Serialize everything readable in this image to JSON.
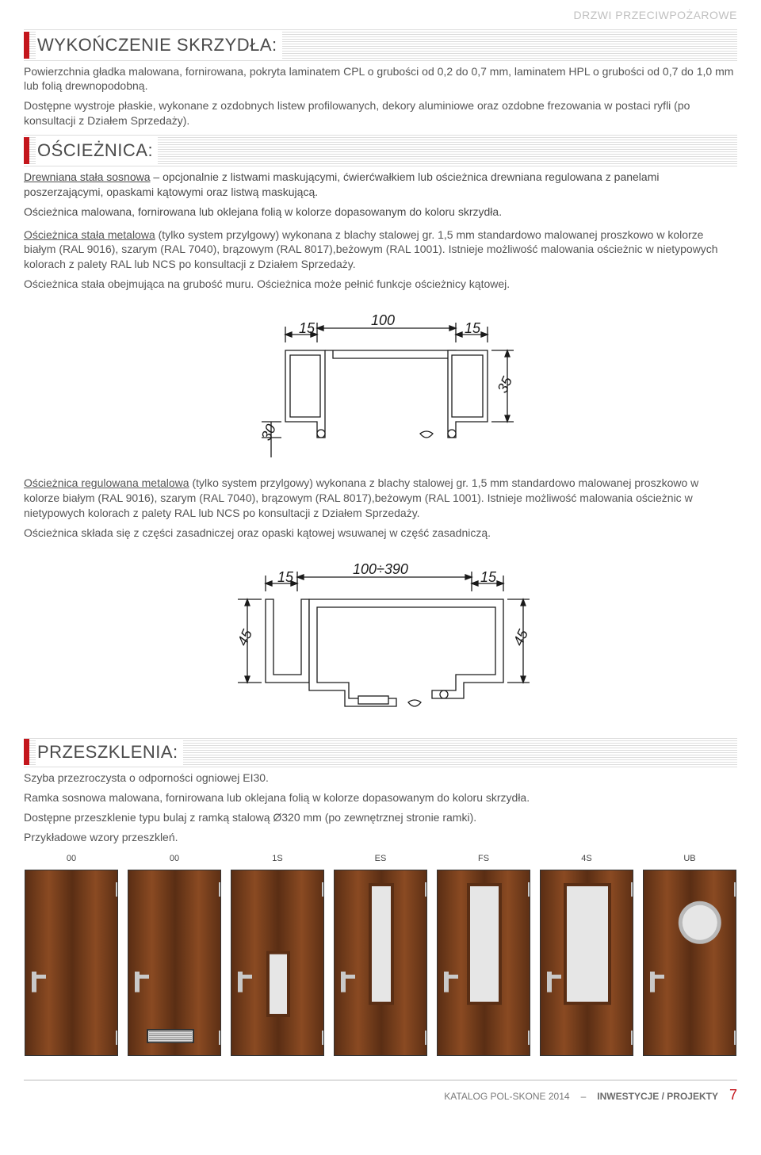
{
  "top_category": "DRZWI PRZECIWPOŻAROWE",
  "section1": {
    "title": "WYKOŃCZENIE SKRZYDŁA:",
    "p1": "Powierzchnia gładka malowana, fornirowana, pokryta laminatem CPL o grubości od 0,2 do 0,7 mm, laminatem HPL o grubości od 0,7 do 1,0 mm lub folią drewnopodobną.",
    "p2": "Dostępne wystroje płaskie, wykonane z ozdobnych listew profilowanych, dekory aluminiowe oraz ozdobne frezowania w postaci ryfli (po konsultacji z Działem Sprzedaży)."
  },
  "section2": {
    "title": "OŚCIEŻNICA:",
    "p1a_u": "Drewniana stała sosnowa",
    "p1b": " – opcjonalnie z listwami maskującymi, ćwierćwałkiem lub ościeżnica drewniana regulowana z panelami poszerzającymi, opaskami kątowymi oraz listwą maskującą.",
    "p2": "Ościeżnica malowana, fornirowana lub oklejana folią w kolorze dopasowanym do koloru skrzydła.",
    "p3a_u": "Ościeżnica stała metalowa",
    "p3b": " (tylko system przylgowy) wykonana z blachy stalowej gr. 1,5 mm standardowo malowanej proszkowo w kolorze białym (RAL 9016), szarym (RAL 7040), brązowym (RAL 8017),beżowym (RAL 1001). Istnieje możliwość malowania ościeżnic w nietypowych kolorach z palety RAL lub NCS po konsultacji z Działem Sprzedaży.",
    "p4": "Ościeżnica stała obejmująca na grubość muru. Ościeżnica może pełnić funkcje ościeżnicy kątowej.",
    "diagram1": {
      "dim_left": "15",
      "dim_mid": "100",
      "dim_right": "15",
      "dim_h1": "30",
      "dim_h2": "35",
      "stroke": "#1a1a1a"
    },
    "p5a_u": "Ościeżnica regulowana metalowa",
    "p5b": " (tylko system przylgowy) wykonana z blachy stalowej gr. 1,5 mm standardowo malowanej proszkowo w kolorze białym (RAL 9016), szarym (RAL 7040), brązowym (RAL 8017),beżowym (RAL 1001). Istnieje możliwość malowania ościeżnic w nietypowych kolorach z palety RAL lub NCS po konsultacji z Działem Sprzedaży.",
    "p6": "Ościeżnica składa się z części zasadniczej oraz opaski kątowej wsuwanej w część zasadniczą.",
    "diagram2": {
      "dim_left": "15",
      "dim_mid": "100÷390",
      "dim_right": "15",
      "dim_h1": "45",
      "dim_h2": "45",
      "stroke": "#1a1a1a"
    }
  },
  "section3": {
    "title": "PRZESZKLENIA:",
    "p1": "Szyba przezroczysta o odporności ogniowej EI30.",
    "p2": "Ramka sosnowa malowana, fornirowana lub oklejana folią w kolorze dopasowanym do koloru skrzydła.",
    "p3": "Dostępne przeszklenie typu bulaj z ramką stalową Ø320 mm (po zewnętrznej stronie ramki).",
    "p4": "Przykładowe wzory przeszkleń."
  },
  "doors": {
    "wood_light": "#8a4a22",
    "wood_dark": "#5a2e14",
    "glass": "#e6e6e6",
    "hw": "#c9c9c9",
    "items": [
      {
        "label": "00",
        "type": "plain"
      },
      {
        "label": "00",
        "type": "vent"
      },
      {
        "label": "1S",
        "type": "slot"
      },
      {
        "label": "ES",
        "type": "tall_narrow"
      },
      {
        "label": "FS",
        "type": "tall_mid"
      },
      {
        "label": "4S",
        "type": "tall_wide"
      },
      {
        "label": "UB",
        "type": "bullseye"
      }
    ]
  },
  "footer": {
    "left": "KATALOG POL-SKONE 2014",
    "dash": "–",
    "right": "INWESTYCJE / PROJEKTY",
    "page": "7"
  }
}
